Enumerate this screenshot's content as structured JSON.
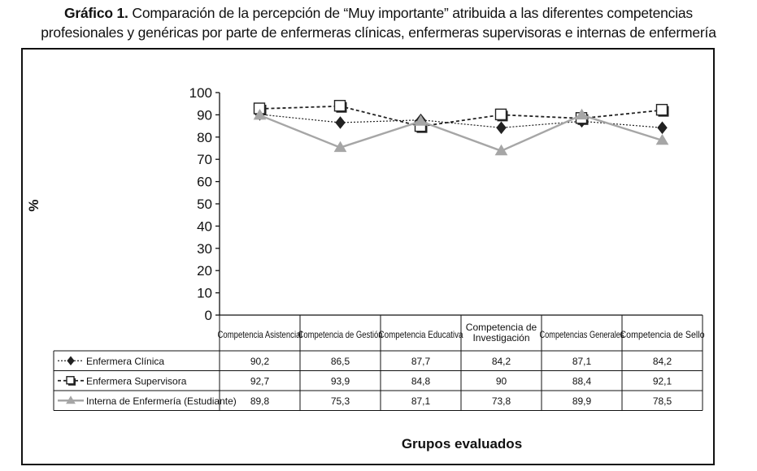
{
  "caption": {
    "label": "Gráfico 1.",
    "line1": "Comparación de la percepción de “Muy importante” atribuida a las diferentes competencias",
    "line2": "profesionales y genéricas por parte de enfermeras clínicas, enfermeras supervisoras e internas de enfermería"
  },
  "chart_data": {
    "type": "line",
    "ylabel": "%",
    "xlabel": "Grupos evaluados",
    "ylim": [
      0,
      100
    ],
    "yticks": [
      0,
      10,
      20,
      30,
      40,
      50,
      60,
      70,
      80,
      90,
      100
    ],
    "grid": false,
    "legend": "data table",
    "categories": [
      [
        "Competencia Asistencial"
      ],
      [
        "Competencia de Gestión"
      ],
      [
        "Competencia Educativa"
      ],
      [
        "Competencia de",
        "Investigación"
      ],
      [
        "Competencias Generales"
      ],
      [
        "Competencia de Sello"
      ]
    ],
    "series": [
      {
        "name": "Enfermera Clínica",
        "values": [
          90.2,
          86.5,
          87.7,
          84.2,
          87.1,
          84.2
        ],
        "labels": [
          "90,2",
          "86,5",
          "87,7",
          "84,2",
          "87,1",
          "84,2"
        ],
        "marker": "diamond",
        "line": "dotted",
        "color": "#222222"
      },
      {
        "name": "Enfermera Supervisora",
        "values": [
          92.7,
          93.9,
          84.8,
          90,
          88.4,
          92.1
        ],
        "labels": [
          "92,7",
          "93,9",
          "84,8",
          "90",
          "88,4",
          "92,1"
        ],
        "marker": "square",
        "line": "dashed",
        "color": "#222222"
      },
      {
        "name": "Interna de Enfermería (Estudiante)",
        "values": [
          89.8,
          75.3,
          87.1,
          73.8,
          89.9,
          78.5
        ],
        "labels": [
          "89,8",
          "75,3",
          "87,1",
          "73,8",
          "89,9",
          "78,5"
        ],
        "marker": "triangle",
        "line": "solid",
        "color": "#a6a6a6"
      }
    ]
  }
}
